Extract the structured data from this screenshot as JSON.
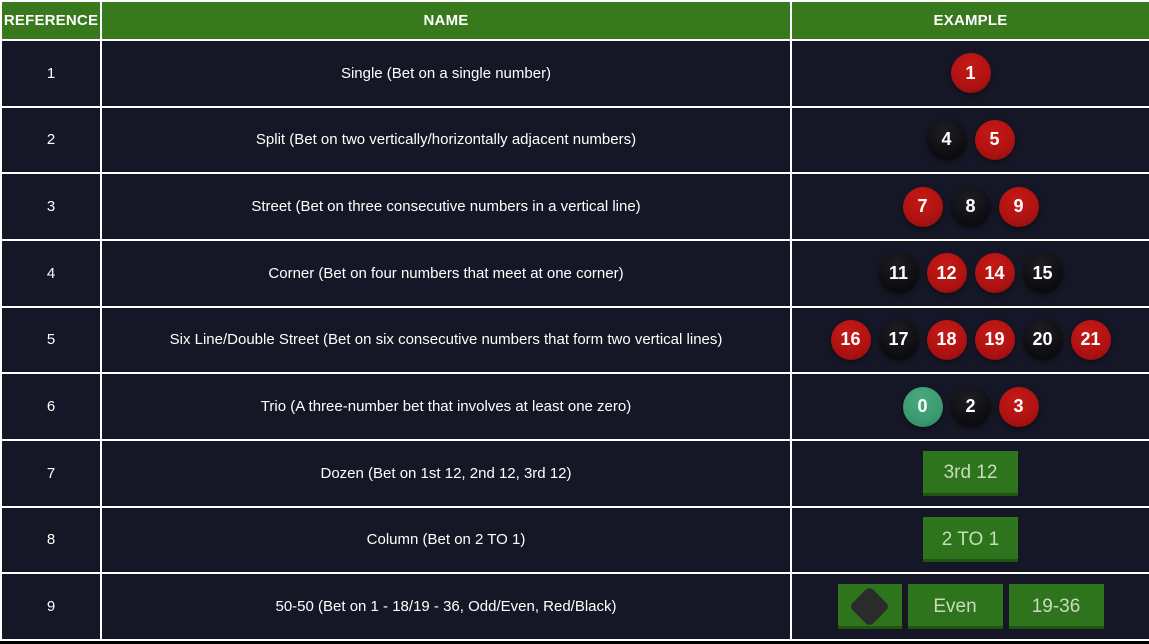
{
  "table": {
    "headers": [
      "REFERENCE",
      "NAME",
      "EXAMPLE"
    ],
    "rows": [
      {
        "reference": "1",
        "name": "Single (Bet on a single number)",
        "example": {
          "type": "chips",
          "chips": [
            {
              "value": "1",
              "color": "red"
            }
          ]
        }
      },
      {
        "reference": "2",
        "name": "Split (Bet on two vertically/horizontally adjacent numbers)",
        "example": {
          "type": "chips",
          "chips": [
            {
              "value": "4",
              "color": "black"
            },
            {
              "value": "5",
              "color": "red"
            }
          ]
        }
      },
      {
        "reference": "3",
        "name": "Street (Bet on three consecutive numbers in a vertical line)",
        "example": {
          "type": "chips",
          "chips": [
            {
              "value": "7",
              "color": "red"
            },
            {
              "value": "8",
              "color": "black"
            },
            {
              "value": "9",
              "color": "red"
            }
          ]
        }
      },
      {
        "reference": "4",
        "name": "Corner (Bet on four numbers that meet at one corner)",
        "example": {
          "type": "chips",
          "chips": [
            {
              "value": "11",
              "color": "black"
            },
            {
              "value": "12",
              "color": "red"
            },
            {
              "value": "14",
              "color": "red"
            },
            {
              "value": "15",
              "color": "black"
            }
          ]
        }
      },
      {
        "reference": "5",
        "name": "Six Line/Double Street (Bet on six consecutive numbers that form two vertical lines)",
        "example": {
          "type": "chips",
          "chips": [
            {
              "value": "16",
              "color": "red"
            },
            {
              "value": "17",
              "color": "black"
            },
            {
              "value": "18",
              "color": "red"
            },
            {
              "value": "19",
              "color": "red"
            },
            {
              "value": "20",
              "color": "black"
            },
            {
              "value": "21",
              "color": "red"
            }
          ]
        }
      },
      {
        "reference": "6",
        "name": "Trio (A three-number bet that involves at least one zero)",
        "example": {
          "type": "chips",
          "chips": [
            {
              "value": "0",
              "color": "green"
            },
            {
              "value": "2",
              "color": "black"
            },
            {
              "value": "3",
              "color": "red"
            }
          ]
        }
      },
      {
        "reference": "7",
        "name": "Dozen (Bet on 1st 12, 2nd 12, 3rd 12)",
        "example": {
          "type": "buttons",
          "buttons": [
            {
              "label": "3rd 12"
            }
          ]
        }
      },
      {
        "reference": "8",
        "name": "Column (Bet on 2 TO 1)",
        "example": {
          "type": "buttons",
          "buttons": [
            {
              "label": "2 TO 1"
            }
          ]
        }
      },
      {
        "reference": "9",
        "name": "50-50 (Bet on 1 - 18/19 - 36, Odd/Even, Red/Black)",
        "example": {
          "type": "buttons",
          "buttons": [
            {
              "icon": "black-diamond"
            },
            {
              "label": "Even"
            },
            {
              "label": "19-36"
            }
          ]
        }
      }
    ],
    "colors": {
      "header_bg": "#38791d",
      "row_bg": "#151726",
      "grid": "#ffffff",
      "chip_red": "#b11312",
      "chip_black": "#0c0c10",
      "chip_green": "#3c9a70",
      "button_green": "#2d741c",
      "button_text": "#c8dcbc",
      "text": "#ffffff"
    }
  }
}
